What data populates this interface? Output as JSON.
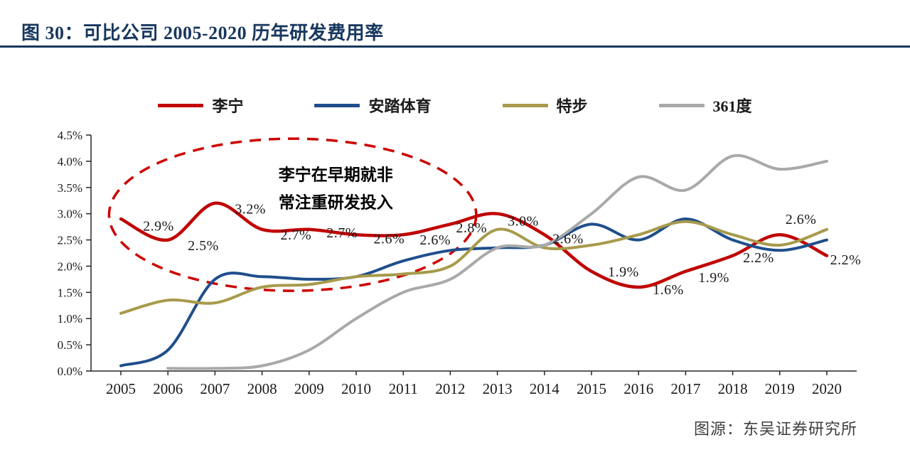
{
  "header": {
    "title": "图 30：可比公司 2005-2020 历年研发费用率"
  },
  "footer": {
    "source": "图源：东吴证券研究所"
  },
  "colors": {
    "accent_navy": "#17375E",
    "lining_red": "#C00000",
    "anta_blue": "#1F4E8C",
    "xtep_olive": "#A79A4B",
    "s361_gray": "#A9A9A9"
  },
  "chart_data": {
    "type": "line",
    "title": "可比公司 2005-2020 历年研发费用率",
    "xlabel": "",
    "ylabel": "",
    "x": [
      2005,
      2006,
      2007,
      2008,
      2009,
      2010,
      2011,
      2012,
      2013,
      2014,
      2015,
      2016,
      2017,
      2018,
      2019,
      2020
    ],
    "ylim": [
      0,
      4.5
    ],
    "ytick_step": 0.5,
    "ytick_labels": [
      "0.0%",
      "0.5%",
      "1.0%",
      "1.5%",
      "2.0%",
      "2.5%",
      "3.0%",
      "3.5%",
      "4.0%",
      "4.5%"
    ],
    "grid": false,
    "legend_position": "top",
    "series": [
      {
        "name": "李宁",
        "color": "#C00000",
        "width": 4.5,
        "values": [
          2.9,
          2.5,
          3.2,
          2.7,
          2.7,
          2.6,
          2.6,
          2.8,
          3.0,
          2.6,
          1.9,
          1.6,
          1.9,
          2.2,
          2.6,
          2.2
        ]
      },
      {
        "name": "安踏体育",
        "color": "#1F4E8C",
        "width": 4,
        "values": [
          0.1,
          0.4,
          1.75,
          1.8,
          1.75,
          1.8,
          2.1,
          2.3,
          2.35,
          2.4,
          2.8,
          2.5,
          2.9,
          2.5,
          2.3,
          2.5
        ]
      },
      {
        "name": "特步",
        "color": "#A79A4B",
        "width": 4,
        "values": [
          1.1,
          1.35,
          1.3,
          1.6,
          1.65,
          1.8,
          1.85,
          2.0,
          2.7,
          2.35,
          2.4,
          2.6,
          2.85,
          2.6,
          2.4,
          2.7
        ]
      },
      {
        "name": "361度",
        "color": "#A9A9A9",
        "width": 4,
        "values": [
          null,
          0.05,
          0.05,
          0.1,
          0.4,
          1.0,
          1.5,
          1.75,
          2.35,
          2.4,
          3.0,
          3.7,
          3.45,
          4.1,
          3.85,
          4.0
        ]
      }
    ],
    "point_labels": [
      {
        "text": "2.9%",
        "year": 2005.8,
        "value": 2.77
      },
      {
        "text": "2.5%",
        "year": 2006.75,
        "value": 2.4
      },
      {
        "text": "3.2%",
        "year": 2007.75,
        "value": 3.1
      },
      {
        "text": "2.7%",
        "year": 2008.72,
        "value": 2.6
      },
      {
        "text": "2.7%",
        "year": 2009.7,
        "value": 2.64
      },
      {
        "text": "2.6%",
        "year": 2010.7,
        "value": 2.53
      },
      {
        "text": "2.6%",
        "year": 2011.68,
        "value": 2.51
      },
      {
        "text": "2.8%",
        "year": 2012.45,
        "value": 2.74
      },
      {
        "text": "3.0%",
        "year": 2013.55,
        "value": 2.87
      },
      {
        "text": "2.6%",
        "year": 2014.5,
        "value": 2.53
      },
      {
        "text": "1.9%",
        "year": 2015.68,
        "value": 1.9
      },
      {
        "text": "1.6%",
        "year": 2016.63,
        "value": 1.56
      },
      {
        "text": "1.9%",
        "year": 2017.6,
        "value": 1.79
      },
      {
        "text": "2.2%",
        "year": 2018.55,
        "value": 2.17
      },
      {
        "text": "2.6%",
        "year": 2019.45,
        "value": 2.9
      },
      {
        "text": "2.2%",
        "year": 2020.4,
        "value": 2.13
      }
    ],
    "annotation": {
      "lines": [
        "李宁在早期就非",
        "常注重研发投入"
      ],
      "text_year": 2008.35,
      "text_values": [
        3.75,
        3.22
      ],
      "ellipse": {
        "year": 2008.65,
        "value": 2.98,
        "rx_years": 3.9,
        "ry_percent": 1.45,
        "color": "#CC0000",
        "dash": "16 11",
        "stroke_width": 3.5
      }
    }
  }
}
